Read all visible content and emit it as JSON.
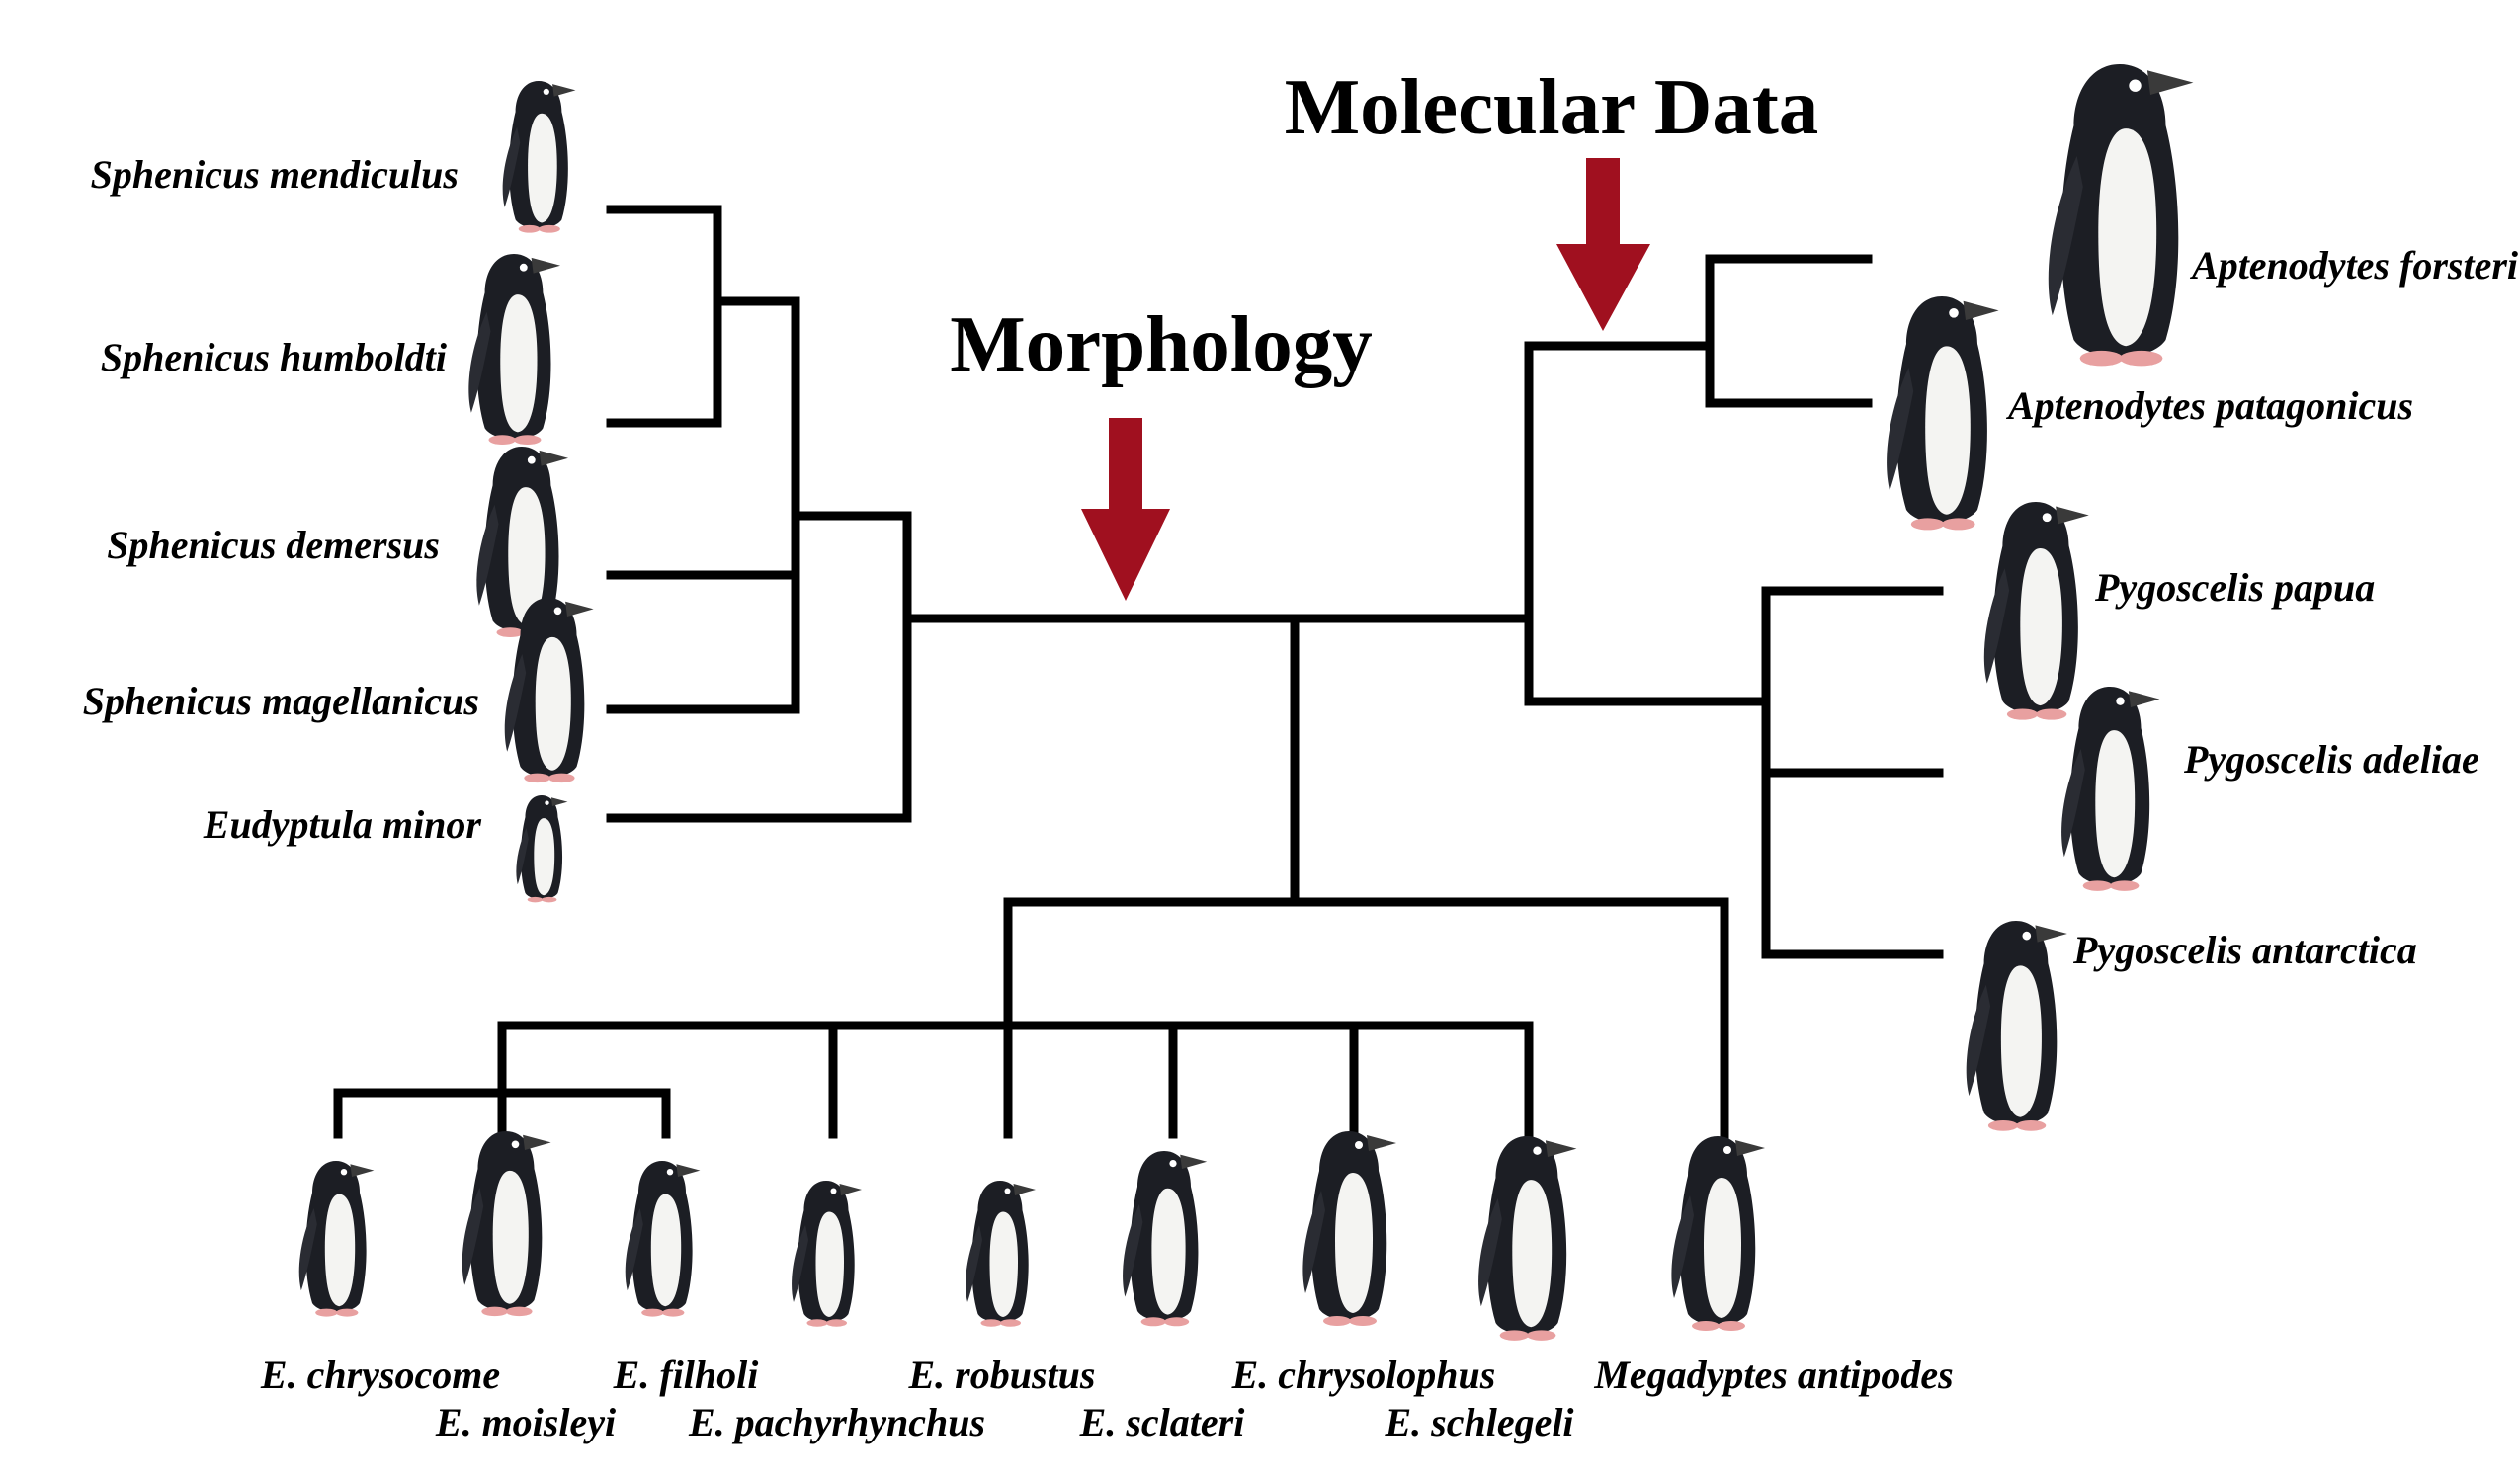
{
  "headings": {
    "morphology": "Morphology",
    "molecular": "Molecular Data"
  },
  "colors": {
    "arrow": "#a0101f",
    "branch": "#000000",
    "background": "#ffffff"
  },
  "species": {
    "sphenicus_mendiculus": "Sphenicus mendiculus",
    "sphenicus_humboldti": "Sphenicus humboldti",
    "sphenicus_demersus": "Sphenicus demersus",
    "sphenicus_magellanicus": "Sphenicus magellanicus",
    "eudyptula_minor": "Eudyptula minor",
    "aptenodytes_forsteri": "Aptenodytes forsteri",
    "aptenodytes_patagonicus": "Aptenodytes patagonicus",
    "pygoscelis_papua": "Pygoscelis papua",
    "pygoscelis_adeliae": "Pygoscelis adeliae",
    "pygoscelis_antarctica": "Pygoscelis antarctica",
    "e_chrysocome": "E. chrysocome",
    "e_moisleyi": "E. moisleyi",
    "e_filholi": "E. filholi",
    "e_pachyrhynchus": "E. pachyrhynchus",
    "e_robustus": "E. robustus",
    "e_sclateri": "E. sclateri",
    "e_chrysolophus": "E. chrysolophus",
    "e_schlegeli": "E. schlegeli",
    "megadyptes_antipodes": "Megadyptes antipodes"
  },
  "icons": {
    "penguin": "penguin-illustration-icon",
    "arrow": "down-arrow-icon"
  }
}
